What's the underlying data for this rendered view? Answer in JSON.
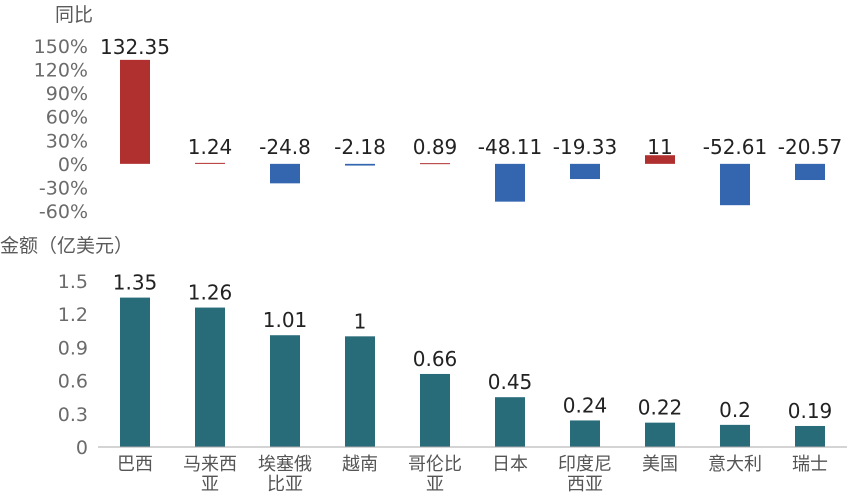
{
  "chart_data": [
    {
      "type": "bar",
      "title": "同比",
      "categories": [
        "巴西",
        "马来西亚",
        "埃塞俄比亚",
        "越南",
        "哥伦比亚",
        "日本",
        "印度尼西亚",
        "美国",
        "意大利",
        "瑞士"
      ],
      "values": [
        132.35,
        1.24,
        -24.8,
        -2.18,
        0.89,
        -48.11,
        -19.33,
        11,
        -52.61,
        -20.57
      ],
      "value_labels": [
        "132.35",
        "1.24",
        "-24.8",
        "-2.18",
        "0.89",
        "-48.11",
        "-19.33",
        "11",
        "-52.61",
        "-20.57"
      ],
      "ylim": [
        -60,
        150
      ],
      "yticks": [
        "150%",
        "120%",
        "90%",
        "60%",
        "30%",
        "0%",
        "-30%",
        "-60%"
      ],
      "colors": {
        "positive": "#b0302f",
        "negative": "#3466b0"
      },
      "grid": false
    },
    {
      "type": "bar",
      "title": "金额（亿美元）",
      "categories": [
        "巴西",
        "马来西亚",
        "埃塞俄比亚",
        "越南",
        "哥伦比亚",
        "日本",
        "印度尼西亚",
        "美国",
        "意大利",
        "瑞士"
      ],
      "category_lines": [
        [
          "巴西"
        ],
        [
          "马来西",
          "亚"
        ],
        [
          "埃塞俄",
          "比亚"
        ],
        [
          "越南"
        ],
        [
          "哥伦比",
          "亚"
        ],
        [
          "日本"
        ],
        [
          "印度尼",
          "西亚"
        ],
        [
          "美国"
        ],
        [
          "意大利"
        ],
        [
          "瑞士"
        ]
      ],
      "values": [
        1.35,
        1.26,
        1.01,
        1,
        0.66,
        0.45,
        0.24,
        0.22,
        0.2,
        0.19
      ],
      "value_labels": [
        "1.35",
        "1.26",
        "1.01",
        "1",
        "0.66",
        "0.45",
        "0.24",
        "0.22",
        "0.2",
        "0.19"
      ],
      "ylim": [
        0,
        1.5
      ],
      "yticks": [
        "1.5",
        "1.2",
        "0.9",
        "0.6",
        "0.3",
        "0"
      ],
      "colors": {
        "bar": "#286b79"
      },
      "grid": false
    }
  ]
}
